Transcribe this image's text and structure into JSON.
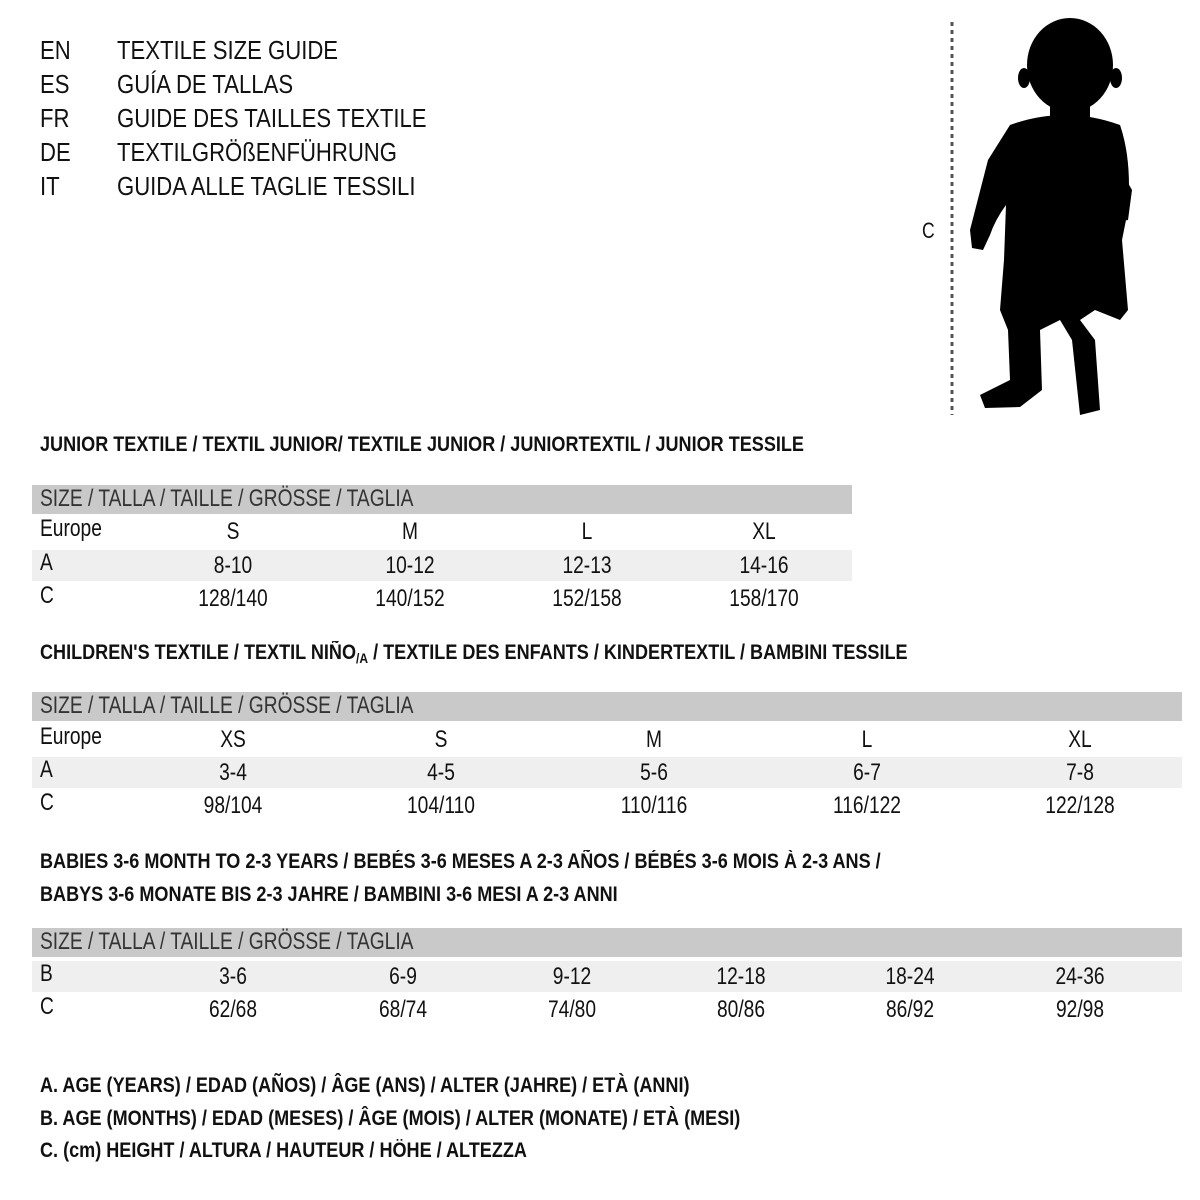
{
  "languages": [
    {
      "code": "EN",
      "title": "TEXTILE SIZE GUIDE"
    },
    {
      "code": "ES",
      "title": "GUÍA DE TALLAS"
    },
    {
      "code": "FR",
      "title": "GUIDE DES TAILLES TEXTILE"
    },
    {
      "code": "DE",
      "title": "TEXTILGRÖßENFÜHRUNG"
    },
    {
      "code": "IT",
      "title": "GUIDA ALLE TAGLIE TESSILI"
    }
  ],
  "figure": {
    "measure_label": "C",
    "icon": "child-silhouette"
  },
  "size_header": "SIZE / TALLA / TAILLE / GRÖSSE / TAGLIA",
  "junior": {
    "title": "JUNIOR TEXTILE / TEXTIL JUNIOR/ TEXTILE JUNIOR / JUNIORTEXTIL / JUNIOR TESSILE",
    "rows": [
      {
        "label": "Europe",
        "values": [
          "S",
          "M",
          "L",
          "XL"
        ]
      },
      {
        "label": "A",
        "values": [
          "8-10",
          "10-12",
          "12-13",
          "14-16"
        ]
      },
      {
        "label": "C",
        "values": [
          "128/140",
          "140/152",
          "152/158",
          "158/170"
        ]
      }
    ]
  },
  "children": {
    "title_a": "CHILDREN'S TEXTILE / TEXTIL NIÑO",
    "title_sub": "/A",
    "title_b": " / TEXTILE DES ENFANTS / KINDERTEXTIL / BAMBINI TESSILE",
    "rows": [
      {
        "label": "Europe",
        "values": [
          "XS",
          "S",
          "M",
          "L",
          "XL"
        ]
      },
      {
        "label": "A",
        "values": [
          "3-4",
          "4-5",
          "5-6",
          "6-7",
          "7-8"
        ]
      },
      {
        "label": "C",
        "values": [
          "98/104",
          "104/110",
          "110/116",
          "116/122",
          "122/128"
        ]
      }
    ]
  },
  "babies": {
    "title_line1": "BABIES 3-6 MONTH TO 2-3 YEARS / BEBÉS 3-6 MESES A 2-3 AÑOS / BÉBÉS 3-6 MOIS À 2-3 ANS /",
    "title_line2": "BABYS 3-6 MONATE BIS 2-3 JAHRE / BAMBINI 3-6 MESI A 2-3 ANNI",
    "rows": [
      {
        "label": "B",
        "values": [
          "3-6",
          "6-9",
          "9-12",
          "12-18",
          "18-24",
          "24-36"
        ]
      },
      {
        "label": "C",
        "values": [
          "62/68",
          "68/74",
          "74/80",
          "80/86",
          "86/92",
          "92/98"
        ]
      }
    ]
  },
  "legend": [
    "A. AGE (YEARS) / EDAD (AÑOS) / ÂGE (ANS) / ALTER (JAHRE) / ETÀ (ANNI)",
    "B. AGE (MONTHS) / EDAD (MESES) / ÂGE (MOIS) / ALTER (MONATE) / ETÀ (MESI)",
    "C. (cm) HEIGHT / ALTURA / HAUTEUR / HÖHE / ALTEZZA"
  ],
  "colors": {
    "header_bg": "#c9c9c9",
    "stripe_bg": "#efefef",
    "text": "#111111"
  }
}
